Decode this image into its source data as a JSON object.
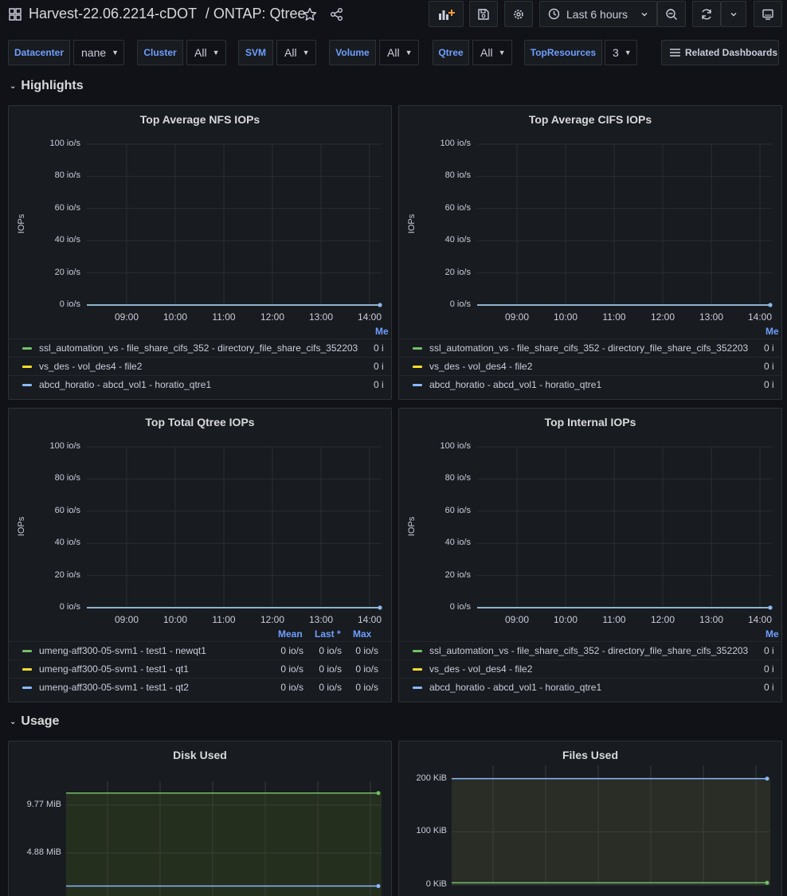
{
  "header": {
    "folder": "Harvest-22.06.2214-cDOT",
    "separator": "/",
    "dashboard": "ONTAP: Qtree",
    "time_range": "Last 6 hours"
  },
  "variables": [
    {
      "label": "Datacenter",
      "value": "nane"
    },
    {
      "label": "Cluster",
      "value": "All"
    },
    {
      "label": "SVM",
      "value": "All"
    },
    {
      "label": "Volume",
      "value": "All"
    },
    {
      "label": "Qtree",
      "value": "All"
    },
    {
      "label": "TopResources",
      "value": "3"
    }
  ],
  "related_dashboards": "Related Dashboards",
  "rows": {
    "highlights": "Highlights",
    "usage": "Usage"
  },
  "colors": {
    "green": "#73bf69",
    "yellow": "#fade2a",
    "blue": "#8ab8ff",
    "accent": "#6e9fff"
  },
  "x_ticks": [
    "09:00",
    "10:00",
    "11:00",
    "12:00",
    "13:00",
    "14:00"
  ],
  "iops_ticks": [
    "100 io/s",
    "80 io/s",
    "60 io/s",
    "40 io/s",
    "20 io/s",
    "0 io/s"
  ],
  "y_title": "IOPs",
  "panels": {
    "nfs": {
      "title": "Top Average NFS IOPs",
      "legend_header": "Me",
      "legend": [
        {
          "name": "ssl_automation_vs - file_share_cifs_352 - directory_file_share_cifs_352203",
          "value": "0 i",
          "color": "green"
        },
        {
          "name": "vs_des - vol_des4 - file2",
          "value": "0 i",
          "color": "yellow"
        },
        {
          "name": "abcd_horatio - abcd_vol1 - horatio_qtre1",
          "value": "0 i",
          "color": "blue"
        }
      ]
    },
    "cifs": {
      "title": "Top Average CIFS IOPs",
      "legend_header": "Me",
      "legend": [
        {
          "name": "ssl_automation_vs - file_share_cifs_352 - directory_file_share_cifs_352203",
          "value": "0 i",
          "color": "green"
        },
        {
          "name": "vs_des - vol_des4 - file2",
          "value": "0 i",
          "color": "yellow"
        },
        {
          "name": "abcd_horatio - abcd_vol1 - horatio_qtre1",
          "value": "0 i",
          "color": "blue"
        }
      ]
    },
    "qtree": {
      "title": "Top Total Qtree IOPs",
      "legend_headers": [
        "Mean",
        "Last *",
        "Max"
      ],
      "legend": [
        {
          "name": "umeng-aff300-05-svm1 - test1 - newqt1",
          "mean": "0 io/s",
          "last": "0 io/s",
          "max": "0 io/s",
          "color": "green"
        },
        {
          "name": "umeng-aff300-05-svm1 - test1 - qt1",
          "mean": "0 io/s",
          "last": "0 io/s",
          "max": "0 io/s",
          "color": "yellow"
        },
        {
          "name": "umeng-aff300-05-svm1 - test1 - qt2",
          "mean": "0 io/s",
          "last": "0 io/s",
          "max": "0 io/s",
          "color": "blue"
        }
      ]
    },
    "internal": {
      "title": "Top Internal IOPs",
      "legend_header": "Me",
      "legend": [
        {
          "name": "ssl_automation_vs - file_share_cifs_352 - directory_file_share_cifs_352203",
          "value": "0 i",
          "color": "green"
        },
        {
          "name": "vs_des - vol_des4 - file2",
          "value": "0 i",
          "color": "yellow"
        },
        {
          "name": "abcd_horatio - abcd_vol1 - horatio_qtre1",
          "value": "0 i",
          "color": "blue"
        }
      ]
    },
    "disk": {
      "title": "Disk Used",
      "y_ticks": [
        "9.77 MiB",
        "4.88 MiB"
      ]
    },
    "files": {
      "title": "Files Used",
      "y_ticks": [
        "200 KiB",
        "100 KiB",
        "0 KiB"
      ]
    }
  },
  "chart_data": [
    {
      "type": "line",
      "title": "Top Average NFS IOPs",
      "ylabel": "IOPs",
      "ylim": [
        0,
        100
      ],
      "x": [
        "09:00",
        "10:00",
        "11:00",
        "12:00",
        "13:00",
        "14:00"
      ],
      "series": [
        {
          "name": "ssl_automation_vs - file_share_cifs_352 - directory_file_share_cifs_352203",
          "values": [
            0,
            0,
            0,
            0,
            0,
            0
          ]
        },
        {
          "name": "vs_des - vol_des4 - file2",
          "values": [
            0,
            0,
            0,
            0,
            0,
            0
          ]
        },
        {
          "name": "abcd_horatio - abcd_vol1 - horatio_qtre1",
          "values": [
            0,
            0,
            0,
            0,
            0,
            0
          ]
        }
      ]
    },
    {
      "type": "line",
      "title": "Top Average CIFS IOPs",
      "ylabel": "IOPs",
      "ylim": [
        0,
        100
      ],
      "x": [
        "09:00",
        "10:00",
        "11:00",
        "12:00",
        "13:00",
        "14:00"
      ],
      "series": [
        {
          "name": "ssl_automation_vs - file_share_cifs_352 - directory_file_share_cifs_352203",
          "values": [
            0,
            0,
            0,
            0,
            0,
            0
          ]
        },
        {
          "name": "vs_des - vol_des4 - file2",
          "values": [
            0,
            0,
            0,
            0,
            0,
            0
          ]
        },
        {
          "name": "abcd_horatio - abcd_vol1 - horatio_qtre1",
          "values": [
            0,
            0,
            0,
            0,
            0,
            0
          ]
        }
      ]
    },
    {
      "type": "line",
      "title": "Top Total Qtree IOPs",
      "ylabel": "IOPs",
      "ylim": [
        0,
        100
      ],
      "x": [
        "09:00",
        "10:00",
        "11:00",
        "12:00",
        "13:00",
        "14:00"
      ],
      "series": [
        {
          "name": "umeng-aff300-05-svm1 - test1 - newqt1",
          "values": [
            0,
            0,
            0,
            0,
            0,
            0
          ]
        },
        {
          "name": "umeng-aff300-05-svm1 - test1 - qt1",
          "values": [
            0,
            0,
            0,
            0,
            0,
            0
          ]
        },
        {
          "name": "umeng-aff300-05-svm1 - test1 - qt2",
          "values": [
            0,
            0,
            0,
            0,
            0,
            0
          ]
        }
      ]
    },
    {
      "type": "line",
      "title": "Top Internal IOPs",
      "ylabel": "IOPs",
      "ylim": [
        0,
        100
      ],
      "x": [
        "09:00",
        "10:00",
        "11:00",
        "12:00",
        "13:00",
        "14:00"
      ],
      "series": [
        {
          "name": "ssl_automation_vs - file_share_cifs_352 - directory_file_share_cifs_352203",
          "values": [
            0,
            0,
            0,
            0,
            0,
            0
          ]
        },
        {
          "name": "vs_des - vol_des4 - file2",
          "values": [
            0,
            0,
            0,
            0,
            0,
            0
          ]
        },
        {
          "name": "abcd_horatio - abcd_vol1 - horatio_qtre1",
          "values": [
            0,
            0,
            0,
            0,
            0,
            0
          ]
        }
      ]
    },
    {
      "type": "area",
      "title": "Disk Used",
      "y_ticks": [
        "9.77 MiB",
        "4.88 MiB"
      ],
      "series": [
        {
          "color": "green",
          "values_mib": [
            11.0,
            11.0
          ]
        },
        {
          "color": "blue",
          "values_mib": [
            1.5,
            1.5
          ]
        }
      ]
    },
    {
      "type": "area",
      "title": "Files Used",
      "y_ticks": [
        "200 KiB",
        "100 KiB",
        "0 KiB"
      ],
      "series": [
        {
          "color": "blue",
          "values_kib": [
            200,
            200
          ]
        },
        {
          "color": "green",
          "values_kib": [
            4,
            4
          ]
        }
      ]
    }
  ]
}
